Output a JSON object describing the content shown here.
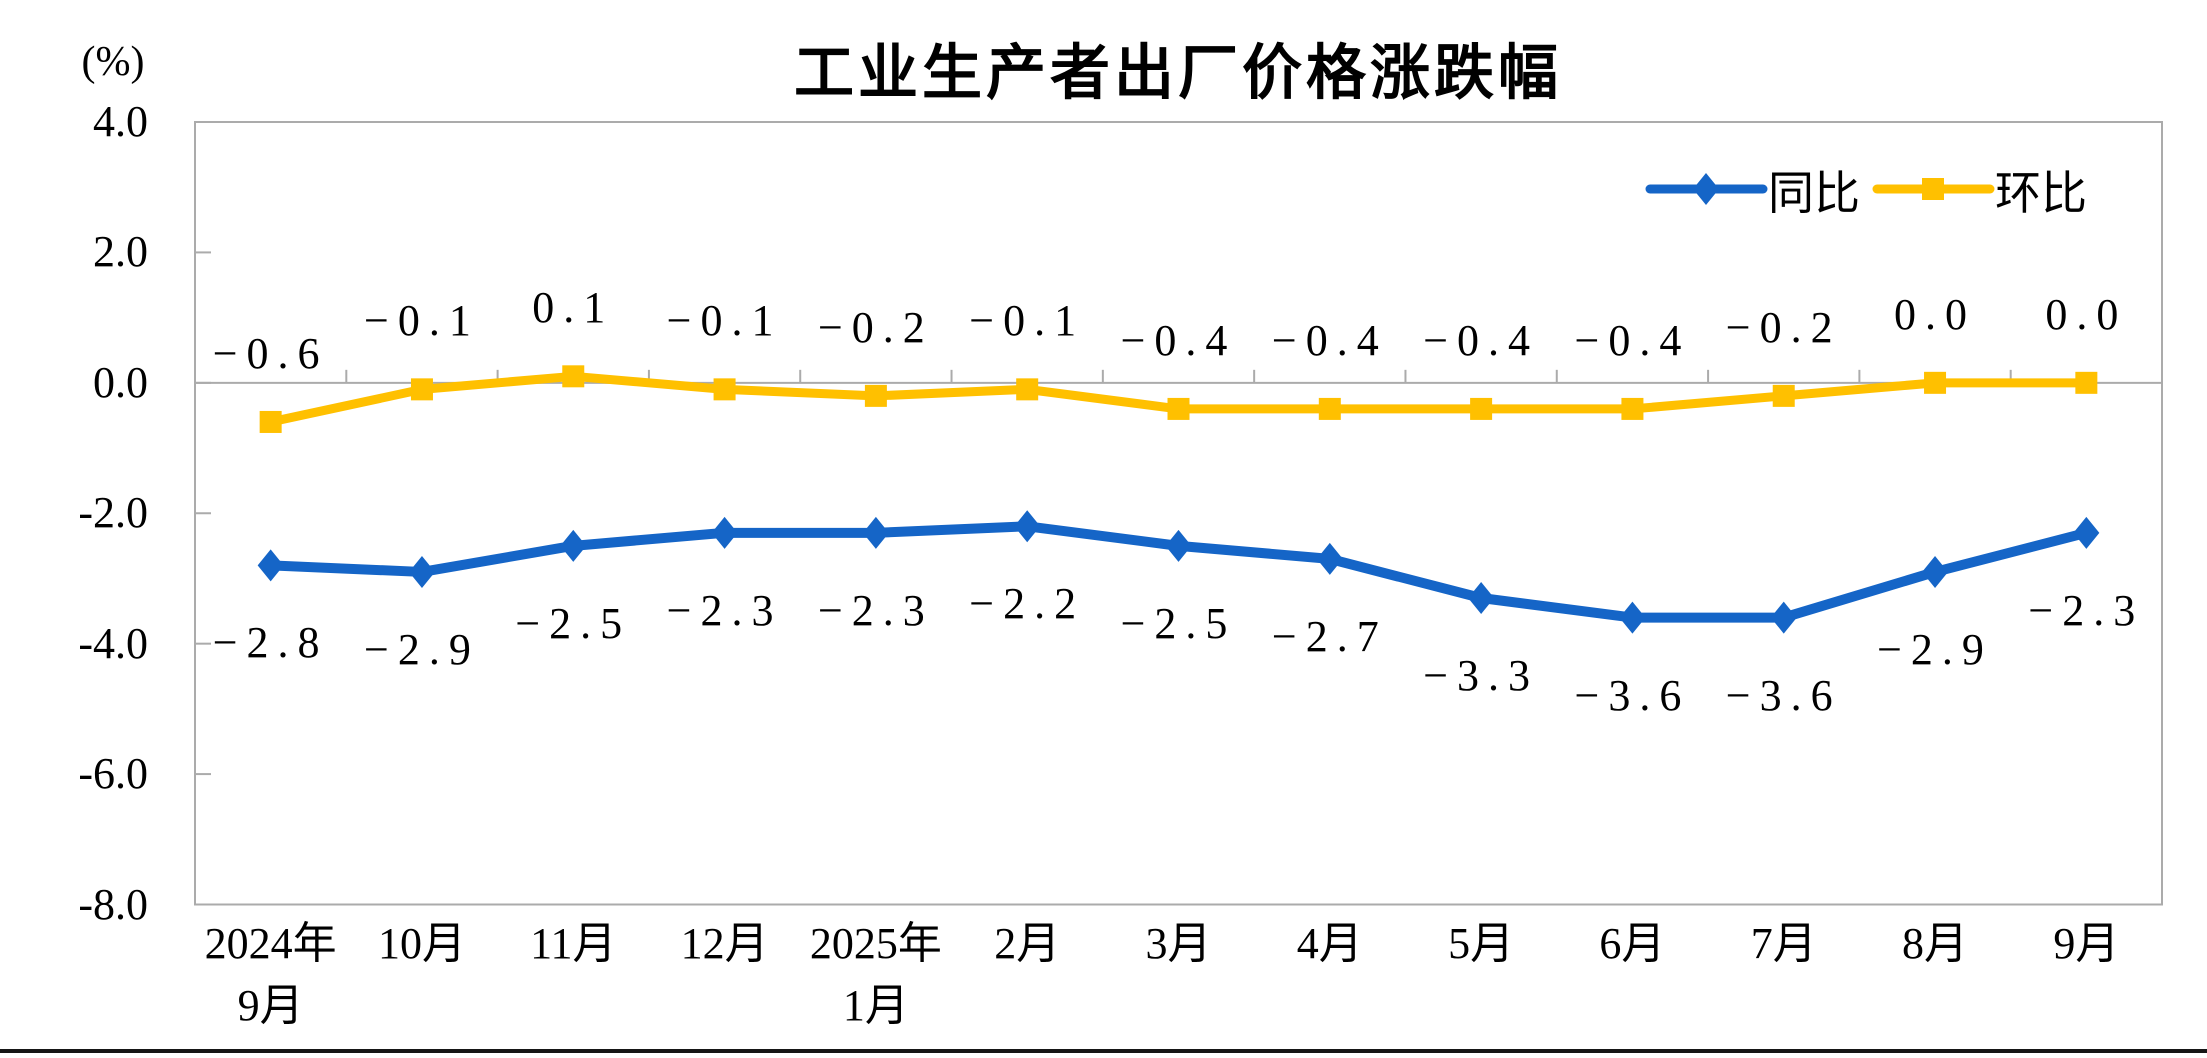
{
  "chart_data": {
    "type": "line",
    "title": "工业生产者出厂价格涨跌幅",
    "ylabel": "(%)",
    "xlabel": "",
    "ylim": [
      -8.0,
      4.0
    ],
    "yticks": [
      "4.0",
      "2.0",
      "0.0",
      "-2.0",
      "-4.0",
      "-6.0",
      "-8.0"
    ],
    "grid": false,
    "zero_axis_line": true,
    "axis_color": "#ABABAB",
    "legend_position": "inside top right",
    "categories": [
      [
        "2024年",
        "9月"
      ],
      [
        "10月"
      ],
      [
        "11月"
      ],
      [
        "12月"
      ],
      [
        "2025年",
        "1月"
      ],
      [
        "2月"
      ],
      [
        "3月"
      ],
      [
        "4月"
      ],
      [
        "5月"
      ],
      [
        "6月"
      ],
      [
        "7月"
      ],
      [
        "8月"
      ],
      [
        "9月"
      ]
    ],
    "series": [
      {
        "name": "同比",
        "color": "#1565C7",
        "marker": "diamond",
        "values": [
          -2.8,
          -2.9,
          -2.5,
          -2.3,
          -2.3,
          -2.2,
          -2.5,
          -2.7,
          -3.3,
          -3.6,
          -3.6,
          -2.9,
          -2.3
        ],
        "labels": [
          "−2.8",
          "−2.9",
          "−2.5",
          "−2.3",
          "−2.3",
          "−2.2",
          "−2.5",
          "−2.7",
          "−3.3",
          "−3.6",
          "−3.6",
          "−2.9",
          "−2.3"
        ]
      },
      {
        "name": "环比",
        "color": "#FFC000",
        "marker": "square",
        "values": [
          -0.6,
          -0.1,
          0.1,
          -0.1,
          -0.2,
          -0.1,
          -0.4,
          -0.4,
          -0.4,
          -0.4,
          -0.2,
          0.0,
          0.0
        ],
        "labels": [
          "−0.6",
          "−0.1",
          "0.1",
          "−0.1",
          "−0.2",
          "−0.1",
          "−0.4",
          "−0.4",
          "−0.4",
          "−0.4",
          "−0.2",
          "0.0",
          "0.0"
        ]
      }
    ]
  }
}
